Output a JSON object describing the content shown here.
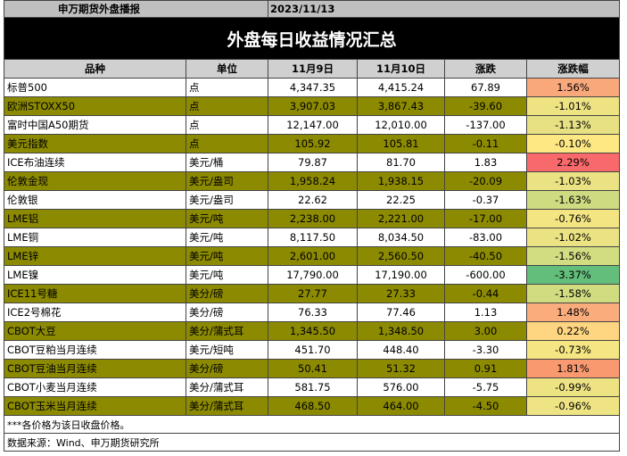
{
  "header": {
    "source": "申万期货外盘播报",
    "date": "2023/11/13"
  },
  "title": "外盘每日收益情况汇总",
  "table": {
    "columns": [
      "品种",
      "单位",
      "11月9日",
      "11月10日",
      "涨跌",
      "涨跌幅"
    ],
    "rows": [
      [
        "标普500",
        "点",
        "4,347.35",
        "4,415.24",
        "67.89",
        "1.56%"
      ],
      [
        "欧洲STOXX50",
        "点",
        "3,907.03",
        "3,867.43",
        "-39.60",
        "-1.01%"
      ],
      [
        "富时中国A50期货",
        "点",
        "12,147.00",
        "12,010.00",
        "-137.00",
        "-1.13%"
      ],
      [
        "美元指数",
        "点",
        "105.92",
        "105.81",
        "-0.11",
        "-0.10%"
      ],
      [
        "ICE布油连续",
        "美元/桶",
        "79.87",
        "81.70",
        "1.83",
        "2.29%"
      ],
      [
        "伦敦金现",
        "美元/盎司",
        "1,958.24",
        "1,938.15",
        "-20.09",
        "-1.03%"
      ],
      [
        "伦敦银",
        "美元/盎司",
        "22.62",
        "22.25",
        "-0.37",
        "-1.63%"
      ],
      [
        "LME铝",
        "美元/吨",
        "2,238.00",
        "2,221.00",
        "-17.00",
        "-0.76%"
      ],
      [
        "LME铜",
        "美元/吨",
        "8,117.50",
        "8,034.50",
        "-83.00",
        "-1.02%"
      ],
      [
        "LME锌",
        "美元/吨",
        "2,601.00",
        "2,560.50",
        "-40.50",
        "-1.56%"
      ],
      [
        "LME镍",
        "美元/吨",
        "17,790.00",
        "17,190.00",
        "-600.00",
        "-3.37%"
      ],
      [
        "ICE11号糖",
        "美分/磅",
        "27.77",
        "27.33",
        "-0.44",
        "-1.58%"
      ],
      [
        "ICE2号棉花",
        "美分/磅",
        "76.33",
        "77.46",
        "1.13",
        "1.48%"
      ],
      [
        "CBOT大豆",
        "美分/蒲式耳",
        "1,345.50",
        "1,348.50",
        "3.00",
        "0.22%"
      ],
      [
        "CBOT豆粕当月连续",
        "美元/短吨",
        "451.70",
        "448.40",
        "-3.30",
        "-0.73%"
      ],
      [
        "CBOT豆油当月连续",
        "美分/磅",
        "50.41",
        "51.32",
        "0.91",
        "1.81%"
      ],
      [
        "CBOT小麦当月连续",
        "美分/蒲式耳",
        "581.75",
        "576.00",
        "-5.75",
        "-0.99%"
      ],
      [
        "CBOT玉米当月连续",
        "美分/蒲式耳",
        "468.50",
        "464.00",
        "-4.50",
        "-0.96%"
      ]
    ],
    "change_colors": [
      "#f9a87c",
      "#eee383",
      "#e7e184",
      "#fde884",
      "#f8696b",
      "#ebe383",
      "#cfdb81",
      "#f4e583",
      "#ebe383",
      "#d2dc81",
      "#63be7b",
      "#d1dc81",
      "#faac7d",
      "#fed580",
      "#f5e683",
      "#f9996f",
      "#eee383",
      "#efe483"
    ]
  },
  "notes": [
    "***各价格为该日收盘价格。",
    "数据来源：Wind、申万期货研究所"
  ]
}
